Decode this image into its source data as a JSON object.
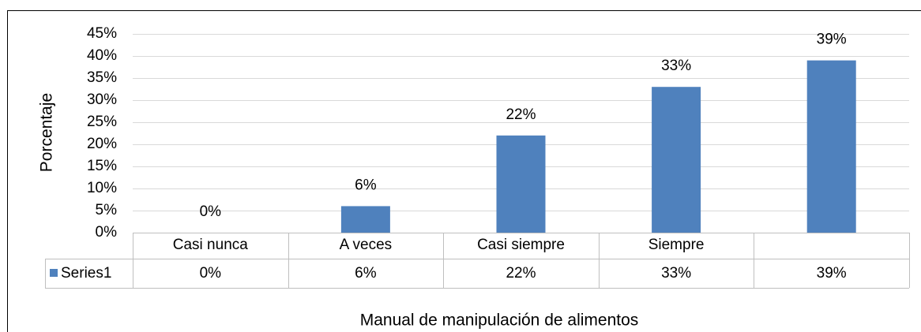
{
  "chart_data": {
    "type": "bar",
    "y_axis_label": "Porcentaje",
    "x_axis_label": "Manual de manipulación de alimentos",
    "categories": [
      "Casi nunca",
      "A veces",
      "Casi siempre",
      "Siempre",
      null
    ],
    "series": [
      {
        "name": "Series1",
        "color": "#4f81bd",
        "values": [
          0,
          6,
          22,
          33,
          39
        ],
        "value_labels": [
          "0%",
          "6%",
          "22%",
          "33%",
          "39%"
        ]
      }
    ],
    "ylim": [
      0,
      45
    ],
    "yticks": [
      {
        "value": 0,
        "label": "0%"
      },
      {
        "value": 5,
        "label": "5%"
      },
      {
        "value": 10,
        "label": "10%"
      },
      {
        "value": 15,
        "label": "15%"
      },
      {
        "value": 20,
        "label": "20%"
      },
      {
        "value": 25,
        "label": "25%"
      },
      {
        "value": 30,
        "label": "30%"
      },
      {
        "value": 35,
        "label": "35%"
      },
      {
        "value": 40,
        "label": "40%"
      },
      {
        "value": 45,
        "label": "45%"
      }
    ],
    "grid": true
  }
}
